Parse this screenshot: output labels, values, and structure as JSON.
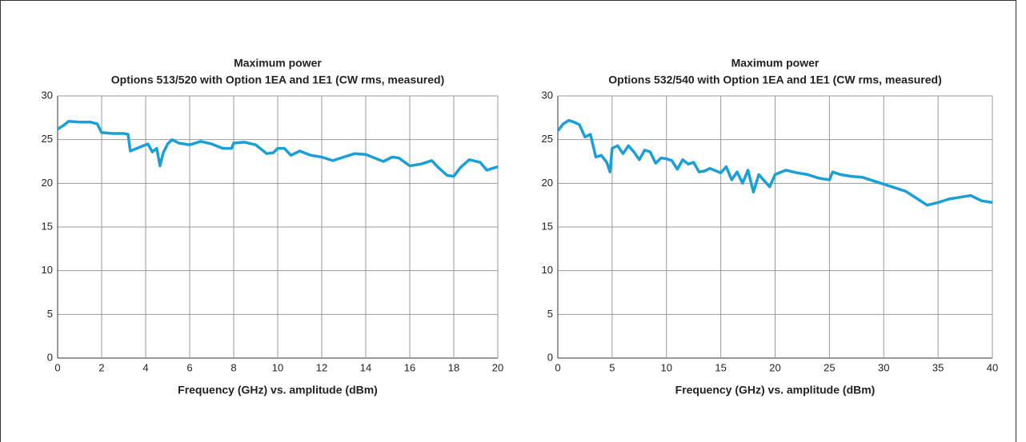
{
  "chart_data": [
    {
      "type": "line",
      "title": "Maximum power",
      "subtitle": "Options 513/520 with Option 1EA and 1E1 (CW rms, measured)",
      "xlabel": "Frequency (GHz) vs. amplitude (dBm)",
      "color": "#1a9fd6",
      "grid": true,
      "xlim": [
        0,
        20
      ],
      "xticks": [
        0,
        2,
        4,
        6,
        8,
        10,
        12,
        14,
        16,
        18,
        20
      ],
      "ylim": [
        0,
        30
      ],
      "yticks": [
        0,
        5,
        10,
        15,
        20,
        25,
        30
      ],
      "x": [
        0,
        0.25,
        0.5,
        1,
        1.5,
        1.8,
        2,
        2.5,
        3,
        3.2,
        3.3,
        3.6,
        3.9,
        4.1,
        4.3,
        4.5,
        4.65,
        4.8,
        5,
        5.2,
        5.5,
        6,
        6.5,
        7,
        7.5,
        7.9,
        8,
        8.5,
        9,
        9.5,
        9.8,
        10,
        10.3,
        10.6,
        11,
        11.5,
        12,
        12.5,
        13,
        13.5,
        14,
        14.5,
        14.8,
        15.2,
        15.5,
        16,
        16.5,
        17,
        17.3,
        17.7,
        18,
        18.3,
        18.7,
        19.2,
        19.5,
        20
      ],
      "values": [
        26.2,
        26.6,
        27.1,
        27.0,
        27.0,
        26.8,
        25.8,
        25.7,
        25.7,
        25.6,
        23.7,
        24.0,
        24.3,
        24.5,
        23.6,
        24.0,
        22.0,
        23.5,
        24.5,
        25.0,
        24.6,
        24.4,
        24.8,
        24.5,
        24.0,
        24.0,
        24.6,
        24.7,
        24.4,
        23.4,
        23.5,
        24.0,
        24.0,
        23.2,
        23.7,
        23.2,
        23.0,
        22.6,
        23.0,
        23.4,
        23.3,
        22.8,
        22.5,
        23.0,
        22.9,
        22.0,
        22.2,
        22.6,
        21.8,
        20.9,
        20.8,
        21.8,
        22.7,
        22.4,
        21.5,
        21.9
      ]
    },
    {
      "type": "line",
      "title": "Maximum power",
      "subtitle": "Options 532/540 with Option 1EA and 1E1 (CW rms, measured)",
      "xlabel": "Frequency (GHz) vs. amplitude (dBm)",
      "color": "#1a9fd6",
      "grid": true,
      "xlim": [
        0,
        40
      ],
      "xticks": [
        0,
        5,
        10,
        15,
        20,
        25,
        30,
        35,
        40
      ],
      "ylim": [
        0,
        30
      ],
      "yticks": [
        0,
        5,
        10,
        15,
        20,
        25,
        30
      ],
      "x": [
        0,
        0.5,
        1,
        1.5,
        2,
        2.5,
        3,
        3.5,
        4,
        4.5,
        4.8,
        5,
        5.5,
        6,
        6.5,
        7,
        7.5,
        8,
        8.5,
        9,
        9.5,
        10,
        10.5,
        11,
        11.5,
        12,
        12.5,
        13,
        13.5,
        14,
        15,
        15.5,
        16,
        16.5,
        17,
        17.5,
        18,
        18.5,
        19,
        19.5,
        20,
        21,
        22,
        23,
        24,
        25,
        25.3,
        26,
        27,
        28,
        29,
        30,
        31,
        32,
        33,
        34,
        35,
        36,
        37,
        38,
        39,
        40
      ],
      "values": [
        26.0,
        26.8,
        27.2,
        27.0,
        26.7,
        25.3,
        25.6,
        23.0,
        23.2,
        22.4,
        21.3,
        24.0,
        24.3,
        23.4,
        24.3,
        23.6,
        22.7,
        23.8,
        23.6,
        22.3,
        22.9,
        22.8,
        22.6,
        21.6,
        22.7,
        22.2,
        22.4,
        21.3,
        21.4,
        21.7,
        21.2,
        21.9,
        20.4,
        21.3,
        20.0,
        21.5,
        19.0,
        21.0,
        20.3,
        19.6,
        21.0,
        21.5,
        21.2,
        21.0,
        20.6,
        20.4,
        21.3,
        21.0,
        20.8,
        20.7,
        20.3,
        19.9,
        19.5,
        19.1,
        18.3,
        17.5,
        17.8,
        18.2,
        18.4,
        18.6,
        18.0,
        17.8
      ]
    }
  ]
}
